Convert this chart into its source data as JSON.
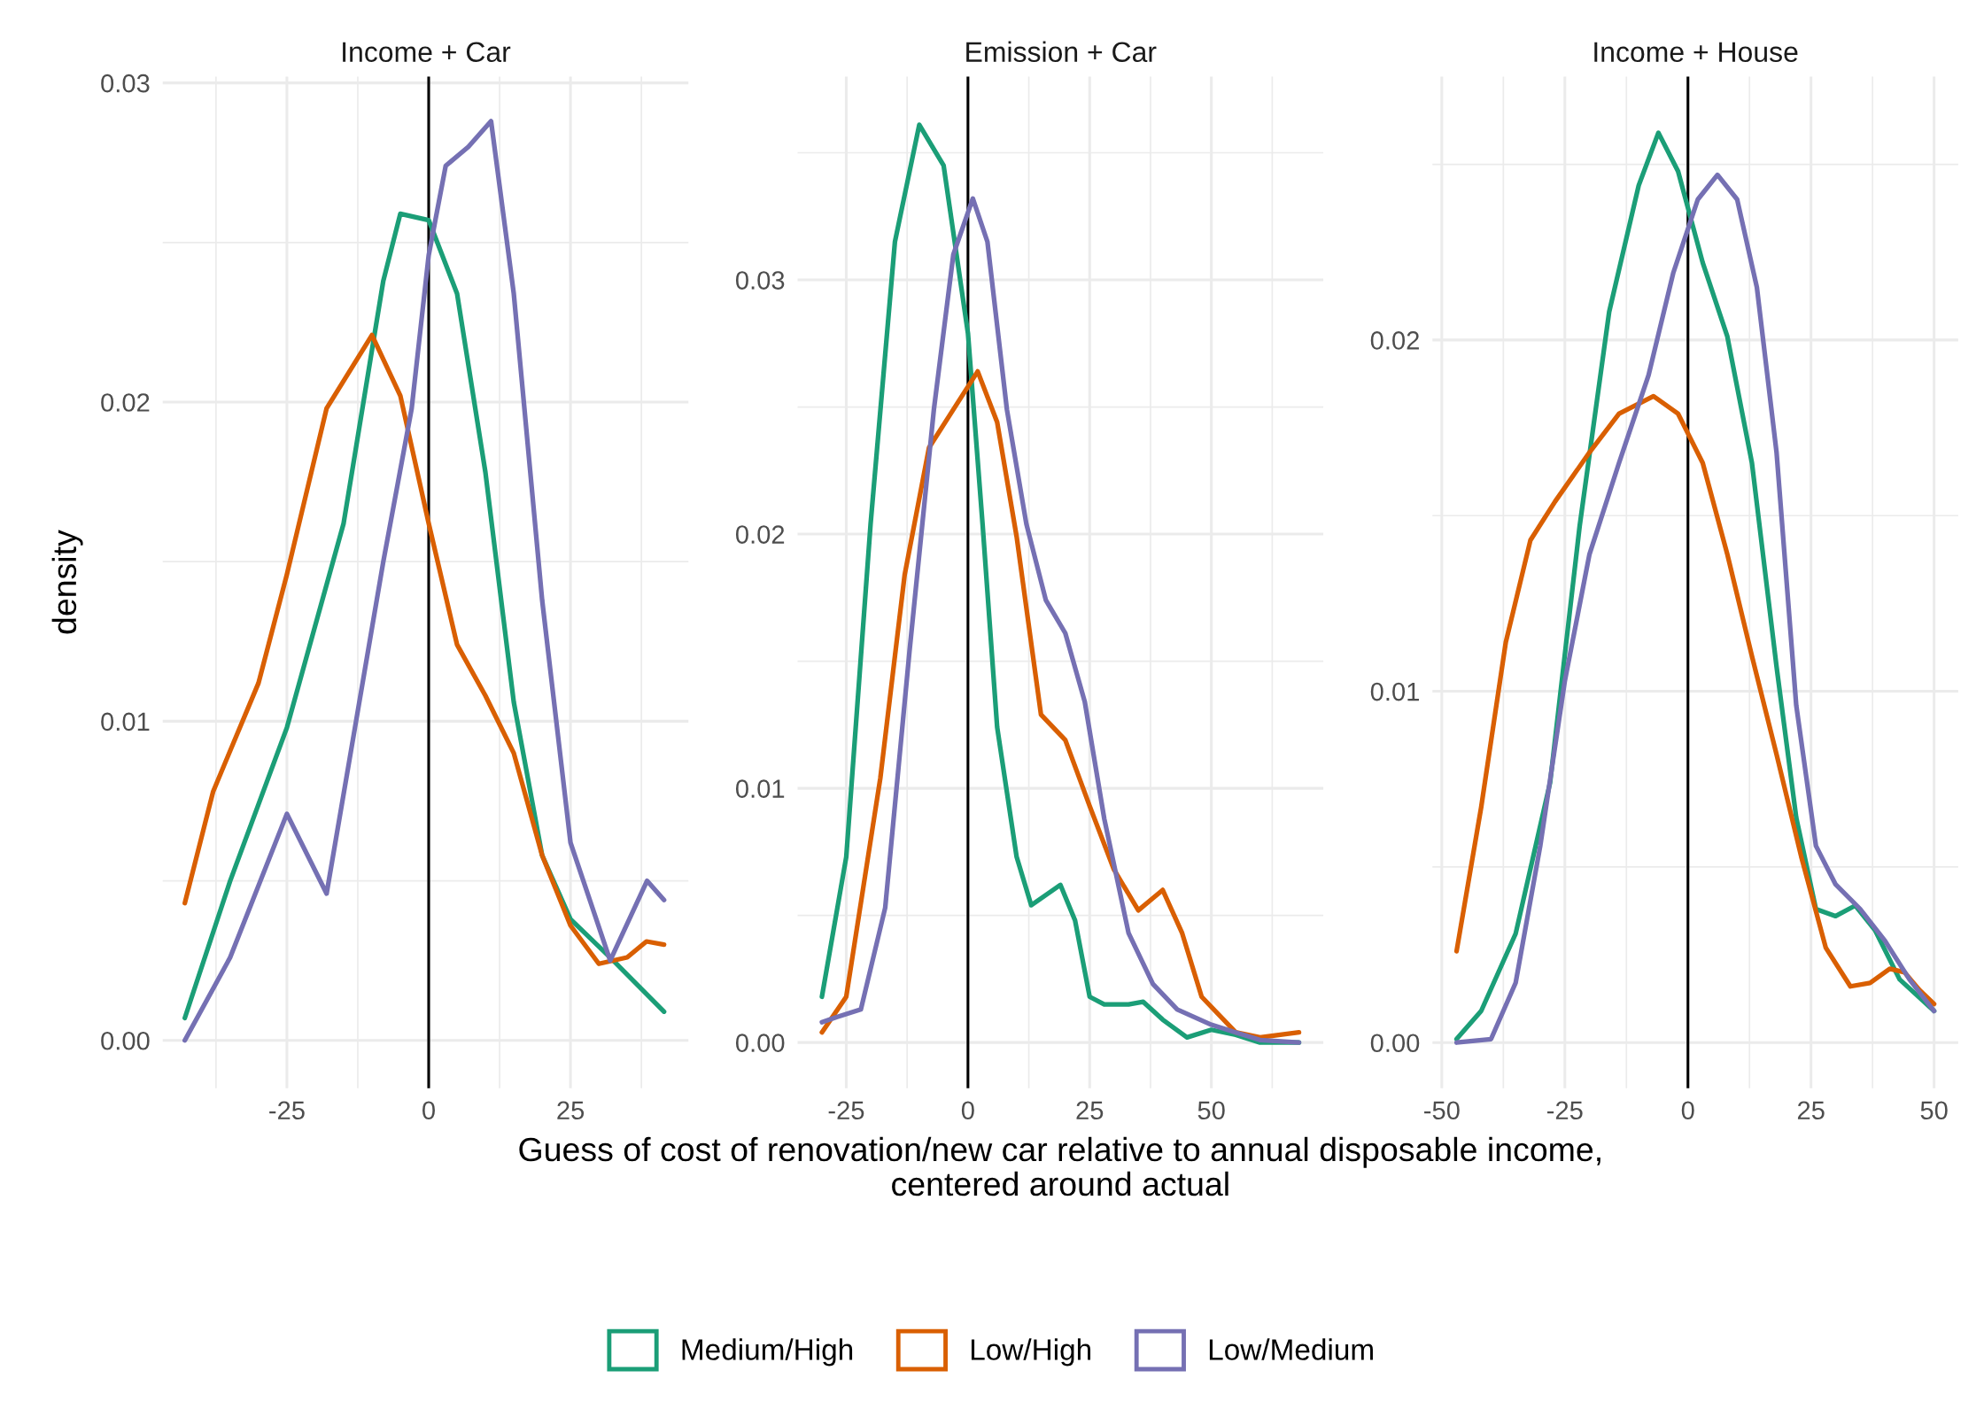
{
  "chart_data": [
    {
      "type": "line",
      "title": "Income + Car",
      "ylabel": "density",
      "xlim": [
        -46.9,
        45.8
      ],
      "ylim": [
        -0.0015,
        0.0302
      ],
      "xticks": [
        -25,
        0,
        25
      ],
      "yticks": [
        {
          "value": 0,
          "label": "0.00"
        },
        {
          "value": 0.01,
          "label": "0.01"
        },
        {
          "value": 0.02,
          "label": "0.02"
        },
        {
          "value": 0.03,
          "label": "0.03"
        }
      ],
      "grid": true,
      "legend": "bottom",
      "line_style": "solid",
      "ref_lines": [
        {
          "axis": "x",
          "value": 0,
          "label": null,
          "color": "#000000"
        }
      ],
      "series": [
        {
          "name": "Medium/High",
          "color": "#1b9e77",
          "x": [
            -43,
            -35,
            -25,
            -15,
            -8,
            -5,
            0,
            5,
            10,
            15,
            20,
            25,
            32,
            41.5
          ],
          "values": [
            0.0007,
            0.005,
            0.0098,
            0.0162,
            0.0238,
            0.0259,
            0.0257,
            0.0234,
            0.0178,
            0.0106,
            0.0058,
            0.0038,
            0.0026,
            0.0009
          ]
        },
        {
          "name": "Low/High",
          "color": "#d95f02",
          "x": [
            -43,
            -38,
            -30,
            -25,
            -18,
            -10,
            -5,
            0,
            5,
            10,
            15,
            20,
            25,
            30,
            35,
            38.4,
            41.5
          ],
          "values": [
            0.0043,
            0.0078,
            0.0112,
            0.0146,
            0.0198,
            0.0221,
            0.0202,
            0.0162,
            0.0124,
            0.0108,
            0.009,
            0.0058,
            0.0036,
            0.0024,
            0.0026,
            0.0031,
            0.003
          ]
        },
        {
          "name": "Low/Medium",
          "color": "#7570b3",
          "x": [
            -43,
            -35,
            -25,
            -18,
            -13,
            -8,
            -3,
            0,
            3,
            7,
            11,
            15,
            20,
            25,
            32,
            38.5,
            41.5
          ],
          "values": [
            0.0,
            0.0026,
            0.0071,
            0.0046,
            0.0098,
            0.015,
            0.0198,
            0.0246,
            0.0274,
            0.028,
            0.0288,
            0.0234,
            0.0138,
            0.0062,
            0.0025,
            0.005,
            0.0044
          ]
        }
      ]
    },
    {
      "type": "line",
      "title": "Emission + Car",
      "xlabel": "Guess of cost of renovation/new car relative to annual disposable income,\ncentered around actual",
      "xlim": [
        -35,
        73
      ],
      "ylim": [
        -0.0018,
        0.038
      ],
      "xticks": [
        -25,
        0,
        25,
        50
      ],
      "yticks": [
        {
          "value": 0,
          "label": "0.00"
        },
        {
          "value": 0.01,
          "label": "0.01"
        },
        {
          "value": 0.02,
          "label": "0.02"
        },
        {
          "value": 0.03,
          "label": "0.03"
        }
      ],
      "grid": true,
      "line_style": "solid",
      "ref_lines": [
        {
          "axis": "x",
          "value": 0,
          "label": null,
          "color": "#000000"
        }
      ],
      "series": [
        {
          "color": "#1b9e77",
          "x": [
            -30,
            -25,
            -20,
            -15,
            -10,
            -5,
            0,
            3,
            6,
            10,
            13,
            16,
            19,
            22,
            25,
            28,
            33,
            36,
            40,
            45,
            50,
            55,
            60,
            68
          ],
          "values": [
            0.0018,
            0.0073,
            0.0204,
            0.0315,
            0.0361,
            0.0345,
            0.0279,
            0.0204,
            0.0124,
            0.0073,
            0.0054,
            0.0058,
            0.0062,
            0.0048,
            0.0018,
            0.0015,
            0.0015,
            0.0016,
            0.0009,
            0.0002,
            0.0005,
            0.0003,
            0.0,
            0.0
          ]
        },
        {
          "color": "#d95f02",
          "x": [
            -30,
            -25,
            -18,
            -13,
            -8,
            -3,
            2,
            6,
            10,
            15,
            20,
            25,
            30,
            35,
            40,
            44,
            48,
            55,
            60,
            68
          ],
          "values": [
            0.0004,
            0.0018,
            0.0104,
            0.0184,
            0.0234,
            0.0249,
            0.0264,
            0.0244,
            0.0199,
            0.0129,
            0.0119,
            0.0093,
            0.0068,
            0.0052,
            0.006,
            0.0043,
            0.0018,
            0.0004,
            0.0002,
            0.0004
          ]
        },
        {
          "color": "#7570b3",
          "x": [
            -30,
            -27,
            -22,
            -17,
            -12,
            -7,
            -3,
            1,
            4,
            8,
            12,
            16,
            20,
            24,
            28,
            33,
            38,
            43,
            50,
            55,
            60,
            68
          ],
          "values": [
            0.0008,
            0.001,
            0.0013,
            0.0053,
            0.0154,
            0.0249,
            0.031,
            0.0332,
            0.0315,
            0.0249,
            0.0204,
            0.0174,
            0.0161,
            0.0134,
            0.0088,
            0.0043,
            0.0023,
            0.0013,
            0.0007,
            0.0004,
            0.0001,
            0.0
          ]
        }
      ]
    },
    {
      "type": "line",
      "title": "Income + House",
      "xlim": [
        -51.9,
        54.9
      ],
      "ylim": [
        -0.0013,
        0.0275
      ],
      "xticks": [
        -50,
        -25,
        0,
        25,
        50
      ],
      "yticks": [
        {
          "value": 0,
          "label": "0.00"
        },
        {
          "value": 0.01,
          "label": "0.01"
        },
        {
          "value": 0.02,
          "label": "0.02"
        }
      ],
      "grid": true,
      "line_style": "solid",
      "ref_lines": [
        {
          "axis": "x",
          "value": 0,
          "label": null,
          "color": "#000000"
        }
      ],
      "series": [
        {
          "color": "#1b9e77",
          "x": [
            -47,
            -42,
            -35,
            -28,
            -22,
            -16,
            -10,
            -6,
            -2,
            3,
            8,
            13,
            18,
            22,
            26,
            30,
            34,
            38,
            43,
            50
          ],
          "values": [
            0.0001,
            0.0009,
            0.0031,
            0.0074,
            0.0147,
            0.0208,
            0.0244,
            0.0259,
            0.0248,
            0.0222,
            0.0201,
            0.0165,
            0.0107,
            0.0064,
            0.0038,
            0.0036,
            0.0039,
            0.0032,
            0.0018,
            0.0009
          ]
        },
        {
          "color": "#d95f02",
          "x": [
            -47,
            -42,
            -37,
            -32,
            -27,
            -20,
            -14,
            -7,
            -2,
            3,
            8,
            13,
            18,
            23,
            28,
            33,
            37,
            41,
            44,
            47,
            50
          ],
          "values": [
            0.0026,
            0.0067,
            0.0114,
            0.0143,
            0.0154,
            0.0168,
            0.0179,
            0.0184,
            0.0179,
            0.0165,
            0.0139,
            0.011,
            0.0082,
            0.0053,
            0.0027,
            0.0016,
            0.0017,
            0.0021,
            0.002,
            0.0015,
            0.0011
          ]
        },
        {
          "color": "#7570b3",
          "x": [
            -47,
            -40,
            -35,
            -30,
            -25,
            -20,
            -14,
            -8,
            -3,
            2,
            6,
            10,
            14,
            18,
            22,
            26,
            30,
            35,
            40,
            45,
            50
          ],
          "values": [
            0.0,
            0.0001,
            0.0017,
            0.0056,
            0.0103,
            0.0139,
            0.0165,
            0.019,
            0.0219,
            0.024,
            0.0247,
            0.024,
            0.0215,
            0.0168,
            0.0096,
            0.0056,
            0.0045,
            0.0038,
            0.0029,
            0.0018,
            0.0009
          ]
        }
      ]
    }
  ]
}
